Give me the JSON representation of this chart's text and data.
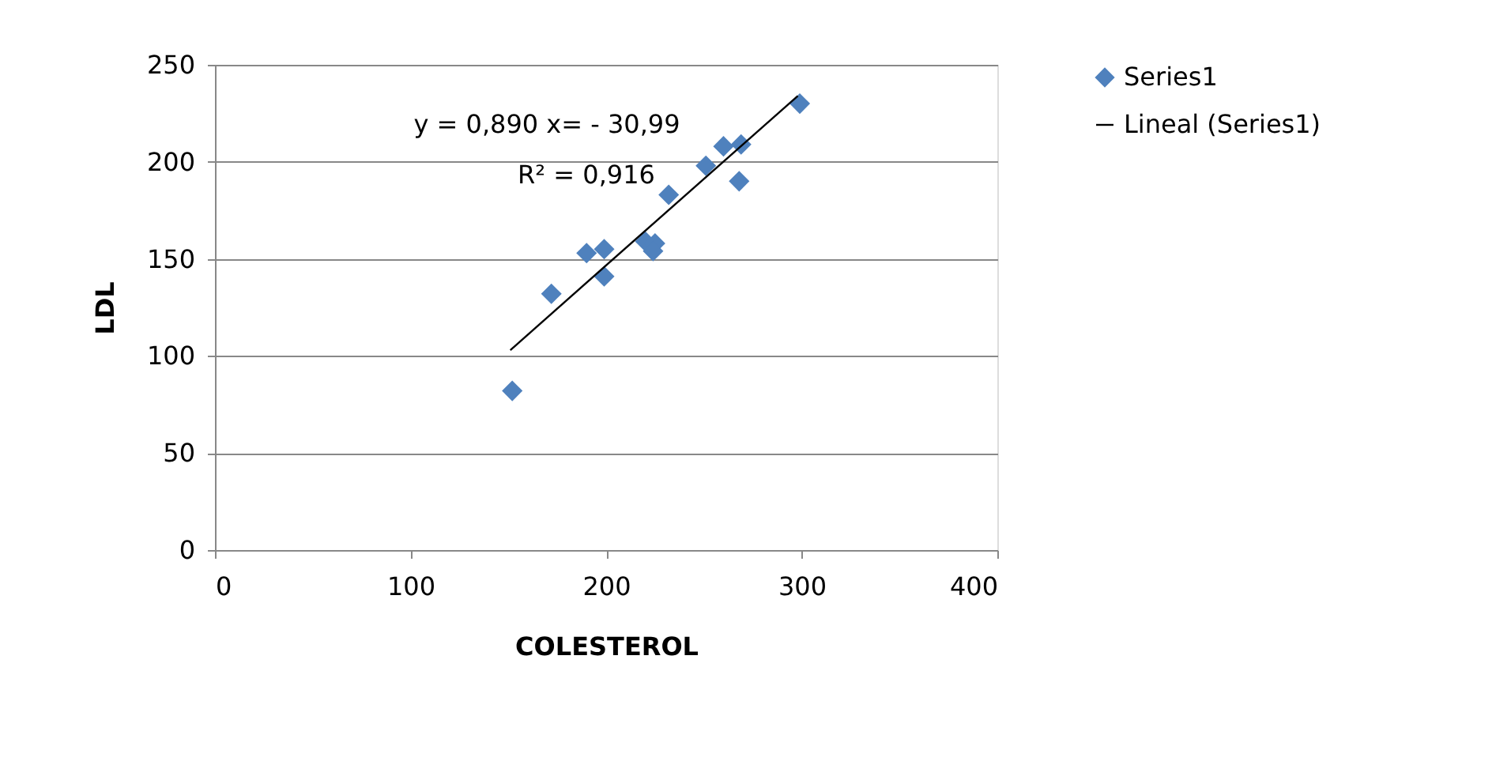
{
  "chart_data": {
    "type": "scatter",
    "xlabel": "COLESTEROL",
    "ylabel": "LDL",
    "series": [
      {
        "name": "Series1",
        "color": "#4f81bd",
        "marker": "diamond",
        "x": [
          152,
          172,
          190,
          199,
          199,
          220,
          225,
          224,
          232,
          251,
          260,
          269,
          268,
          299
        ],
        "values": [
          82,
          132,
          153,
          155,
          141,
          159,
          158,
          154,
          183,
          198,
          208,
          209,
          190,
          230
        ]
      },
      {
        "name": "Lineal (Series1)",
        "type": "line",
        "color": "#000000",
        "line_style": "solid",
        "x": [
          151,
          298
        ],
        "values": [
          103,
          234
        ]
      }
    ],
    "annotations": [
      "y = 0,890   x= - 30,99",
      "R² = 0,916"
    ],
    "xlim": [
      0,
      400
    ],
    "xticks": [
      0,
      100,
      200,
      300,
      400
    ],
    "ylim": [
      0,
      250
    ],
    "yticks": [
      0,
      50,
      100,
      150,
      200,
      250
    ],
    "grid": "y",
    "legend": "right"
  }
}
